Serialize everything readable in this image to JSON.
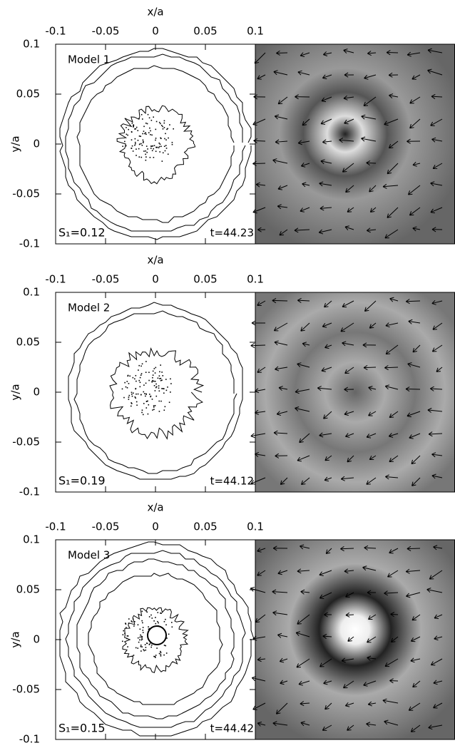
{
  "chart_data": [
    {
      "type": "contour",
      "title": "Model 1",
      "x_label": "x/a",
      "y_label": "y/a",
      "xlim": [
        -0.1,
        0.1
      ],
      "ylim": [
        -0.1,
        0.1
      ],
      "xticks": [
        -0.1,
        -0.05,
        0,
        0.05,
        0.1
      ],
      "yticks": [
        -0.1,
        -0.05,
        0,
        0.05,
        0.1
      ],
      "annotations": [
        "S₁=0.12",
        "t=44.23"
      ]
    },
    {
      "type": "contour",
      "title": "Model 2",
      "x_label": "x/a",
      "y_label": "y/a",
      "xlim": [
        -0.1,
        0.1
      ],
      "ylim": [
        -0.1,
        0.1
      ],
      "xticks": [
        -0.1,
        -0.05,
        0,
        0.05,
        0.1
      ],
      "yticks": [
        -0.1,
        -0.05,
        0,
        0.05,
        0.1
      ],
      "annotations": [
        "S₁=0.19",
        "t=44.12"
      ]
    },
    {
      "type": "contour",
      "title": "Model 3",
      "x_label": "x/a",
      "y_label": "y/a",
      "xlim": [
        -0.1,
        0.1
      ],
      "ylim": [
        -0.1,
        0.1
      ],
      "xticks": [
        -0.1,
        -0.05,
        0,
        0.05,
        0.1
      ],
      "yticks": [
        -0.1,
        -0.05,
        0,
        0.05,
        0.1
      ],
      "annotations": [
        "S₁=0.15",
        "t=44.42"
      ]
    }
  ]
}
